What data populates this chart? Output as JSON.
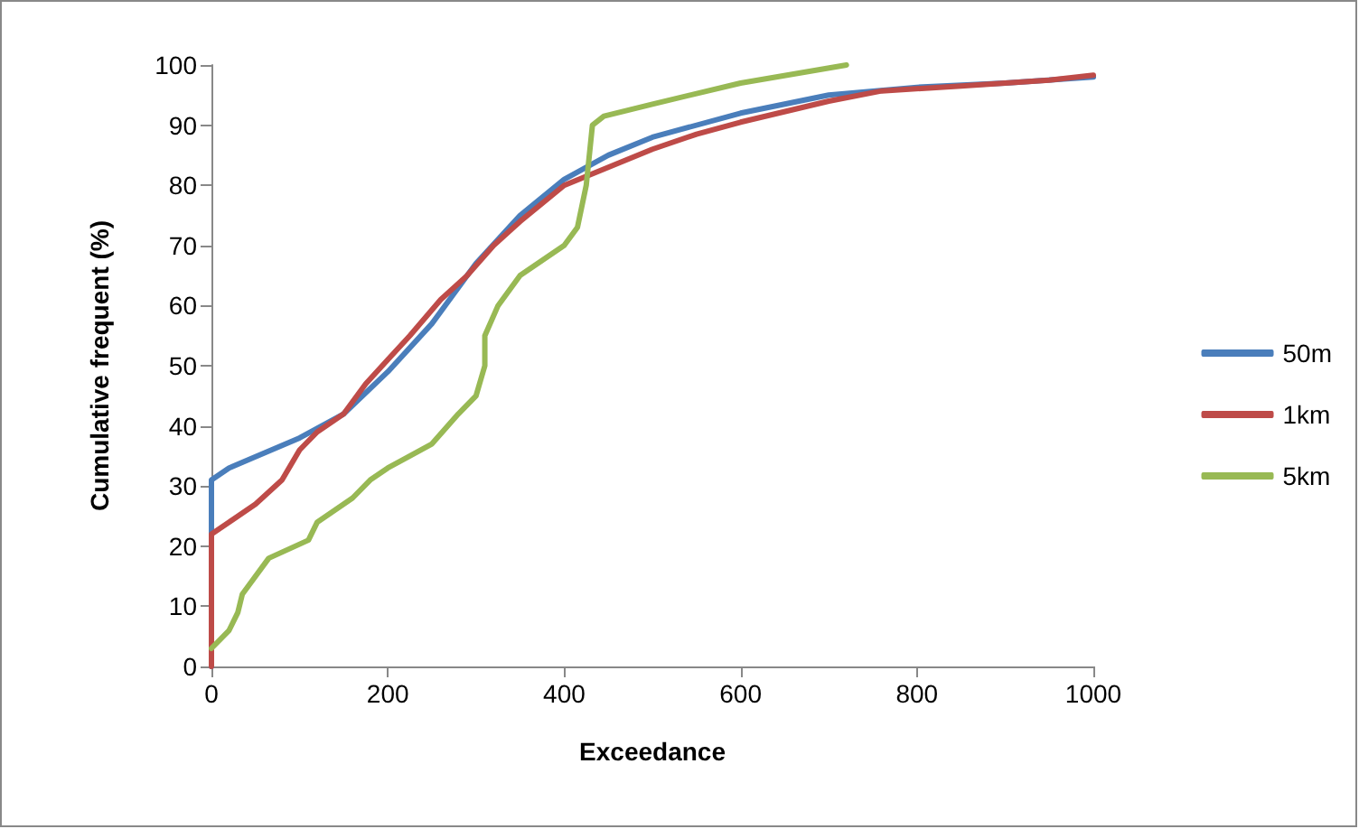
{
  "chart_data": {
    "type": "line",
    "xlabel": "Exceedance",
    "ylabel": "Cumulative frequent (%)",
    "xlim": [
      0,
      1000
    ],
    "xticks": [
      0,
      200,
      400,
      600,
      800,
      1000
    ],
    "ylim": [
      0,
      100
    ],
    "yticks": [
      0,
      10,
      20,
      30,
      40,
      50,
      60,
      70,
      80,
      90,
      100
    ],
    "grid": false,
    "legend": "right",
    "marker": "none",
    "line_style": "solid",
    "series": [
      {
        "name": "50m",
        "color": "#4a7ebb",
        "x": [
          0,
          0,
          20,
          100,
          150,
          200,
          250,
          300,
          350,
          400,
          450,
          500,
          600,
          700,
          800,
          900,
          1000
        ],
        "values": [
          0,
          31,
          33,
          38,
          42,
          49,
          57,
          67,
          75,
          81,
          85,
          88,
          92,
          95,
          96.3,
          97,
          98
        ]
      },
      {
        "name": "1km",
        "color": "#be4b48",
        "x": [
          0,
          0,
          20,
          50,
          80,
          100,
          120,
          150,
          175,
          200,
          225,
          260,
          290,
          320,
          350,
          400,
          450,
          500,
          550,
          600,
          700,
          760,
          850,
          950,
          1000
        ],
        "values": [
          0,
          22,
          24,
          27,
          31,
          36,
          39,
          42,
          47,
          51,
          55,
          61,
          65,
          70,
          74,
          80,
          83,
          86,
          88.5,
          90.5,
          94,
          95.7,
          96.5,
          97.5,
          98.3
        ]
      },
      {
        "name": "5km",
        "color": "#98b954",
        "x": [
          0,
          20,
          30,
          35,
          65,
          110,
          120,
          160,
          180,
          200,
          250,
          280,
          300,
          310,
          310,
          325,
          350,
          400,
          415,
          425,
          432,
          445,
          500,
          600,
          720
        ],
        "values": [
          3,
          6,
          9,
          12,
          18,
          21,
          24,
          28,
          31,
          33,
          37,
          42,
          45,
          50,
          55,
          60,
          65,
          70,
          73,
          80,
          90,
          91.5,
          93.5,
          97,
          100
        ]
      }
    ]
  }
}
